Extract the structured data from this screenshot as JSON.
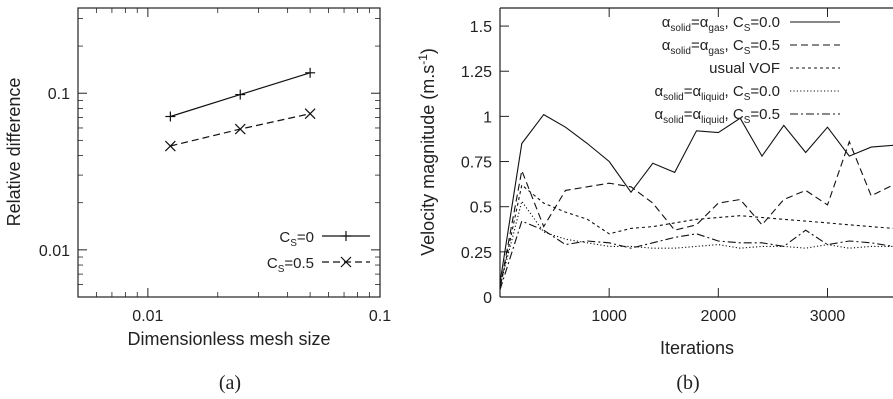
{
  "chart_data": [
    {
      "type": "line",
      "panel_label": "(a)",
      "xlabel": "Dimensionless mesh size",
      "ylabel": "Relative difference",
      "xscale": "log",
      "yscale": "log",
      "xlim": [
        0.005,
        0.1
      ],
      "ylim": [
        0.005,
        0.35
      ],
      "xticks": [
        {
          "value": 0.01,
          "label": "0.01"
        },
        {
          "value": 0.1,
          "label": "0.1"
        }
      ],
      "yticks": [
        {
          "value": 0.01,
          "label": "0.01"
        },
        {
          "value": 0.1,
          "label": "0.1"
        }
      ],
      "legend_position": "bottom-right",
      "grid": false,
      "series": [
        {
          "name_main": "C",
          "name_sub": "S",
          "name_rest": "=0",
          "marker": "plus",
          "dash": "solid",
          "x": [
            0.0125,
            0.025,
            0.05
          ],
          "y": [
            0.071,
            0.098,
            0.135
          ]
        },
        {
          "name_main": "C",
          "name_sub": "S",
          "name_rest": "=0.5",
          "marker": "cross",
          "dash": "dashed",
          "x": [
            0.0125,
            0.025,
            0.05
          ],
          "y": [
            0.046,
            0.059,
            0.074
          ]
        }
      ]
    },
    {
      "type": "line",
      "panel_label": "(b)",
      "xlabel": "Iterations",
      "ylabel_main": "Velocity magnitude (m.s",
      "ylabel_sup": "-1",
      "ylabel_end": ")",
      "xlim": [
        0,
        3600
      ],
      "ylim": [
        0,
        1.6
      ],
      "xticks": [
        {
          "value": 1000,
          "label": "1000"
        },
        {
          "value": 2000,
          "label": "2000"
        },
        {
          "value": 3000,
          "label": "3000"
        }
      ],
      "yticks": [
        {
          "value": 0,
          "label": "0"
        },
        {
          "value": 0.25,
          "label": "0.25"
        },
        {
          "value": 0.5,
          "label": "0.5"
        },
        {
          "value": 0.75,
          "label": "0.75"
        },
        {
          "value": 1,
          "label": "1"
        },
        {
          "value": 1.25,
          "label": "1.25"
        },
        {
          "value": 1.5,
          "label": "1.5"
        }
      ],
      "legend_position": "top-right",
      "grid": false,
      "series": [
        {
          "legend": [
            {
              "t": "α"
            },
            {
              "t": "solid",
              "sub": true
            },
            {
              "t": "=α"
            },
            {
              "t": "gas",
              "sub": true
            },
            {
              "t": ", C"
            },
            {
              "t": "S",
              "sub": true
            },
            {
              "t": "=0.0"
            }
          ],
          "dash": "solid",
          "x": [
            0,
            200,
            400,
            600,
            800,
            1000,
            1200,
            1400,
            1600,
            1800,
            2000,
            2200,
            2400,
            2600,
            2800,
            3000,
            3200,
            3400,
            3600
          ],
          "y": [
            0.08,
            0.85,
            1.01,
            0.94,
            0.85,
            0.75,
            0.58,
            0.74,
            0.69,
            0.92,
            0.91,
            0.99,
            0.78,
            0.95,
            0.8,
            0.94,
            0.78,
            0.83,
            0.84
          ]
        },
        {
          "legend": [
            {
              "t": "α"
            },
            {
              "t": "solid",
              "sub": true
            },
            {
              "t": "=α"
            },
            {
              "t": "gas",
              "sub": true
            },
            {
              "t": ", C"
            },
            {
              "t": "S",
              "sub": true
            },
            {
              "t": "=0.5"
            }
          ],
          "dash": "dashed",
          "x": [
            0,
            200,
            400,
            600,
            800,
            1000,
            1200,
            1400,
            1600,
            1800,
            2000,
            2200,
            2400,
            2600,
            2800,
            3000,
            3200,
            3400,
            3600
          ],
          "y": [
            0.05,
            0.7,
            0.39,
            0.59,
            0.61,
            0.63,
            0.61,
            0.52,
            0.37,
            0.4,
            0.52,
            0.54,
            0.4,
            0.54,
            0.59,
            0.51,
            0.86,
            0.56,
            0.62
          ]
        },
        {
          "legend": [
            {
              "t": "usual VOF"
            }
          ],
          "dash": "dotted",
          "x": [
            0,
            200,
            400,
            600,
            800,
            1000,
            1200,
            1400,
            1600,
            1800,
            2000,
            2200,
            2400,
            2600,
            2800,
            3000,
            3200,
            3400,
            3600
          ],
          "y": [
            0.05,
            0.62,
            0.52,
            0.47,
            0.43,
            0.35,
            0.38,
            0.39,
            0.41,
            0.43,
            0.44,
            0.45,
            0.44,
            0.43,
            0.42,
            0.41,
            0.4,
            0.39,
            0.38
          ]
        },
        {
          "legend": [
            {
              "t": "α"
            },
            {
              "t": "solid",
              "sub": true
            },
            {
              "t": "=α"
            },
            {
              "t": "liquid",
              "sub": true
            },
            {
              "t": ", C"
            },
            {
              "t": "S",
              "sub": true
            },
            {
              "t": "=0.0"
            }
          ],
          "dash": "fine-dotted",
          "x": [
            0,
            200,
            400,
            600,
            800,
            1000,
            1200,
            1400,
            1600,
            1800,
            2000,
            2200,
            2400,
            2600,
            2800,
            3000,
            3200,
            3400,
            3600
          ],
          "y": [
            0.06,
            0.53,
            0.36,
            0.32,
            0.3,
            0.28,
            0.28,
            0.27,
            0.27,
            0.28,
            0.29,
            0.27,
            0.28,
            0.28,
            0.27,
            0.29,
            0.27,
            0.28,
            0.28
          ]
        },
        {
          "legend": [
            {
              "t": "α"
            },
            {
              "t": "solid",
              "sub": true
            },
            {
              "t": "=α"
            },
            {
              "t": "liquid",
              "sub": true
            },
            {
              "t": ", C"
            },
            {
              "t": "S",
              "sub": true
            },
            {
              "t": "=0.5"
            }
          ],
          "dash": "dash-dot",
          "x": [
            0,
            200,
            400,
            600,
            800,
            1000,
            1200,
            1400,
            1600,
            1800,
            2000,
            2200,
            2400,
            2600,
            2800,
            3000,
            3200,
            3400,
            3600
          ],
          "y": [
            0.04,
            0.42,
            0.37,
            0.29,
            0.31,
            0.3,
            0.27,
            0.3,
            0.33,
            0.35,
            0.31,
            0.3,
            0.3,
            0.28,
            0.37,
            0.29,
            0.31,
            0.3,
            0.28
          ]
        }
      ]
    }
  ]
}
